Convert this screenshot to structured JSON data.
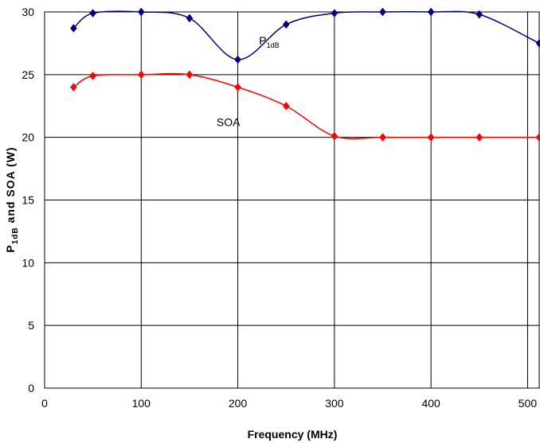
{
  "chart_data": {
    "type": "line",
    "xlabel": "Frequency (MHz)",
    "ylabel": {
      "main": "P",
      "sub": "1dB",
      "rest": " and SOA (W)"
    },
    "xlim": [
      0,
      512
    ],
    "ylim": [
      0,
      30
    ],
    "x_ticks": [
      0,
      100,
      200,
      300,
      400,
      500
    ],
    "y_ticks": [
      0,
      5,
      10,
      15,
      20,
      25,
      30
    ],
    "x_tick_labels": [
      "0",
      "100",
      "200",
      "300",
      "400",
      "500"
    ],
    "y_tick_labels": [
      "0",
      "5",
      "10",
      "15",
      "20",
      "25",
      "30"
    ],
    "grid": true,
    "series": [
      {
        "name": "P1dB",
        "label_main": "P",
        "label_sub": "1dB",
        "color": "#000080",
        "x": [
          30,
          50,
          100,
          150,
          200,
          250,
          300,
          350,
          400,
          450,
          512
        ],
        "y": [
          28.7,
          29.9,
          30.0,
          29.5,
          26.2,
          29.0,
          29.9,
          30.0,
          30.0,
          29.8,
          27.5
        ]
      },
      {
        "name": "SOA",
        "label_main": "SOA",
        "label_sub": "",
        "color": "#ff0000",
        "x": [
          30,
          50,
          100,
          150,
          200,
          250,
          300,
          350,
          400,
          450,
          512
        ],
        "y": [
          24.0,
          24.9,
          25.0,
          25.0,
          24.0,
          22.5,
          20.1,
          20.0,
          20.0,
          20.0,
          20.0
        ]
      }
    ]
  }
}
